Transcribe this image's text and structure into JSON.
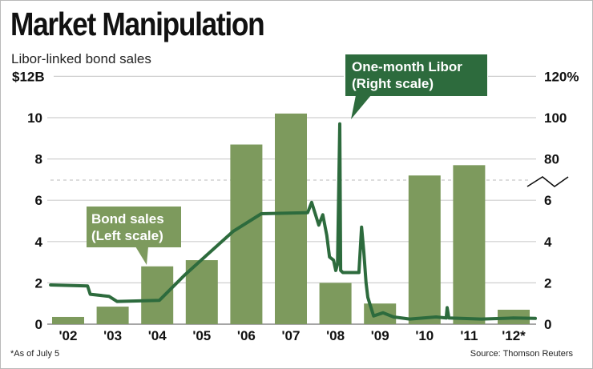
{
  "title": "Market Manipulation",
  "subtitle": "Libor-linked bond sales",
  "footnote": "*As of July 5",
  "source": "Source: Thomson Reuters",
  "colors": {
    "bars": "#7d9a5d",
    "line": "#2d6b3d",
    "grid": "#cfcfcf",
    "callout_bond": "#7d9a5d",
    "callout_libor": "#2d6b3d"
  },
  "chart_data": {
    "type": "bar+line",
    "title": "Market Manipulation",
    "subtitle": "Libor-linked bond sales",
    "categories": [
      "'02",
      "'03",
      "'04",
      "'05",
      "'06",
      "'07",
      "'08",
      "'09",
      "'10",
      "'11",
      "'12*"
    ],
    "left_axis": {
      "label": "Bond sales ($B)",
      "ylim": [
        0,
        12
      ],
      "ticks": [
        "0",
        "2",
        "4",
        "6",
        "8",
        "10",
        "$12B"
      ],
      "tick_values": [
        0,
        2,
        4,
        6,
        8,
        10,
        12
      ]
    },
    "right_axis": {
      "label": "One-month Libor (%)",
      "ticks": [
        "0",
        "2",
        "4",
        "6",
        "80",
        "100",
        "120%"
      ],
      "tick_values": [
        0,
        2,
        4,
        6,
        80,
        100,
        120
      ],
      "break_between": [
        6,
        80
      ]
    },
    "grid": true,
    "series": [
      {
        "name": "Bond sales",
        "annotation": [
          "Bond sales",
          "(Left scale)"
        ],
        "type": "bar",
        "axis": "left",
        "values": [
          0.35,
          0.85,
          2.8,
          3.1,
          8.7,
          10.2,
          2.0,
          1.0,
          7.2,
          7.7,
          0.7
        ]
      },
      {
        "name": "One-month Libor",
        "annotation": [
          "One-month Libor",
          "(Right scale)"
        ],
        "type": "line",
        "axis": "right",
        "x": [
          2002.11,
          2002.94,
          2003.0,
          2003.42,
          2003.6,
          2004.55,
          2005.13,
          2006.21,
          2006.84,
          2007.88,
          2007.97,
          2008.13,
          2008.22,
          2008.31,
          2008.37,
          2008.46,
          2008.51,
          2008.55,
          2008.6,
          2008.62,
          2008.67,
          2009.03,
          2009.09,
          2009.14,
          2009.19,
          2009.23,
          2009.36,
          2009.57,
          2009.81,
          2010.17,
          2010.76,
          2010.99,
          2011.01,
          2011.05,
          2011.78,
          2012.5,
          2012.99
        ],
        "values": [
          1.9,
          1.85,
          1.45,
          1.35,
          1.1,
          1.15,
          2.4,
          4.5,
          5.35,
          5.4,
          5.9,
          4.8,
          5.3,
          4.3,
          3.25,
          3.1,
          2.6,
          2.9,
          97,
          2.6,
          2.5,
          2.5,
          4.7,
          3.5,
          2.0,
          1.3,
          0.4,
          0.55,
          0.35,
          0.25,
          0.35,
          0.3,
          0.8,
          0.3,
          0.25,
          0.3,
          0.28
        ]
      }
    ]
  }
}
